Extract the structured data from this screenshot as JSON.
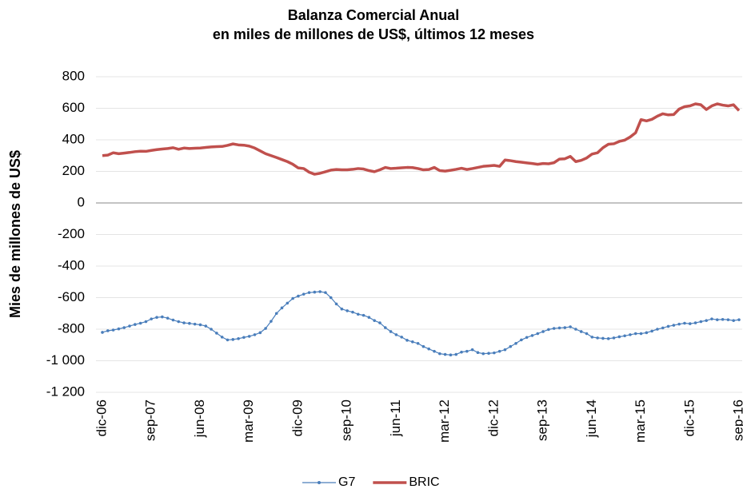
{
  "chart_data": {
    "type": "line",
    "title": "Balanza Comercial Anual",
    "subtitle": "en miles de millones de US$, últimos 12 meses",
    "y_label": "Mies de millones de US$",
    "categories": [
      "dic-06",
      null,
      null,
      null,
      null,
      null,
      null,
      null,
      null,
      "sep-07",
      null,
      null,
      null,
      null,
      null,
      null,
      null,
      null,
      "jun-08",
      null,
      null,
      null,
      null,
      null,
      null,
      null,
      null,
      "mar-09",
      null,
      null,
      null,
      null,
      null,
      null,
      null,
      null,
      "dic-09",
      null,
      null,
      null,
      null,
      null,
      null,
      null,
      null,
      "sep-10",
      null,
      null,
      null,
      null,
      null,
      null,
      null,
      null,
      "jun-11",
      null,
      null,
      null,
      null,
      null,
      null,
      null,
      null,
      "mar-12",
      null,
      null,
      null,
      null,
      null,
      null,
      null,
      null,
      "dic-12",
      null,
      null,
      null,
      null,
      null,
      null,
      null,
      null,
      "sep-13",
      null,
      null,
      null,
      null,
      null,
      null,
      null,
      null,
      "jun-14",
      null,
      null,
      null,
      null,
      null,
      null,
      null,
      null,
      "mar-15",
      null,
      null,
      null,
      null,
      null,
      null,
      null,
      null,
      "dic-15",
      null,
      null,
      null,
      null,
      null,
      null,
      null,
      null,
      "sep-16"
    ],
    "series": [
      {
        "name": "G7",
        "color": "#4a7ebb",
        "markers": true,
        "values": [
          -820,
          -810,
          -805,
          -798,
          -790,
          -780,
          -770,
          -762,
          -752,
          -735,
          -725,
          -722,
          -730,
          -742,
          -752,
          -760,
          -763,
          -768,
          -772,
          -780,
          -800,
          -825,
          -850,
          -868,
          -865,
          -860,
          -852,
          -845,
          -835,
          -822,
          -795,
          -750,
          -700,
          -665,
          -635,
          -605,
          -590,
          -578,
          -568,
          -565,
          -562,
          -568,
          -600,
          -640,
          -672,
          -683,
          -692,
          -705,
          -712,
          -725,
          -745,
          -760,
          -790,
          -815,
          -835,
          -850,
          -870,
          -880,
          -890,
          -910,
          -925,
          -940,
          -955,
          -960,
          -963,
          -960,
          -945,
          -940,
          -930,
          -948,
          -955,
          -953,
          -950,
          -940,
          -930,
          -910,
          -890,
          -868,
          -852,
          -840,
          -828,
          -815,
          -802,
          -795,
          -792,
          -790,
          -785,
          -800,
          -815,
          -828,
          -850,
          -855,
          -858,
          -860,
          -855,
          -848,
          -842,
          -835,
          -828,
          -828,
          -822,
          -812,
          -800,
          -792,
          -782,
          -775,
          -768,
          -762,
          -765,
          -760,
          -752,
          -745,
          -735,
          -740,
          -738,
          -740,
          -745,
          -740
        ]
      },
      {
        "name": "BRIC",
        "color": "#c0504d",
        "markers": false,
        "values": [
          300,
          303,
          318,
          312,
          316,
          320,
          325,
          328,
          327,
          333,
          338,
          342,
          345,
          350,
          340,
          348,
          345,
          347,
          348,
          352,
          355,
          357,
          358,
          365,
          374,
          368,
          366,
          360,
          348,
          330,
          312,
          300,
          288,
          275,
          262,
          245,
          222,
          218,
          195,
          182,
          188,
          198,
          208,
          212,
          210,
          210,
          213,
          218,
          215,
          205,
          198,
          210,
          225,
          218,
          220,
          223,
          225,
          224,
          218,
          210,
          212,
          225,
          205,
          202,
          207,
          213,
          220,
          212,
          218,
          225,
          232,
          235,
          238,
          232,
          272,
          268,
          262,
          258,
          254,
          250,
          245,
          250,
          248,
          255,
          278,
          280,
          295,
          262,
          270,
          285,
          310,
          318,
          350,
          372,
          375,
          390,
          398,
          418,
          445,
          528,
          520,
          530,
          550,
          565,
          558,
          560,
          595,
          610,
          615,
          628,
          622,
          592,
          615,
          628,
          620,
          615,
          622,
          585
        ]
      }
    ],
    "ylim": [
      -1200,
      800
    ],
    "yticks": [
      {
        "value": -1200,
        "label": "-1 200"
      },
      {
        "value": -1000,
        "label": "-1 000"
      },
      -800,
      -600,
      -400,
      -200,
      0,
      200,
      400,
      600,
      800
    ],
    "grid": true,
    "legend": "bottom"
  }
}
